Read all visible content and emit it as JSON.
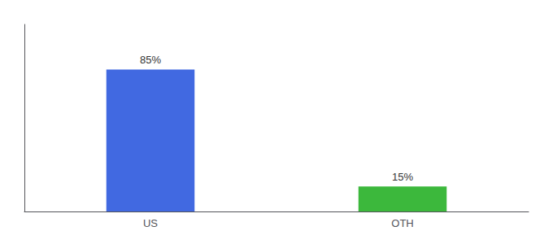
{
  "chart_data": {
    "type": "bar",
    "categories": [
      "US",
      "OTH"
    ],
    "values": [
      85,
      15
    ],
    "value_labels": [
      "85%",
      "15%"
    ],
    "colors": [
      "#4169E1",
      "#3CB83C"
    ],
    "ylim": [
      0,
      112
    ],
    "grid": false,
    "data_labels": true,
    "tick_labels": "x"
  }
}
